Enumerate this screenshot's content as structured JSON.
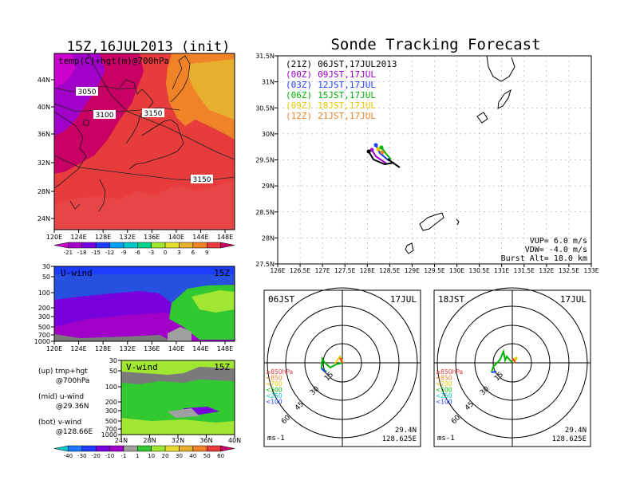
{
  "left": {
    "title": "15Z,16JUL2013 (init)",
    "top_map": {
      "label": "temp(C)+hgt(m)@700hPa",
      "contours": [
        "3050",
        "3100",
        "3150",
        "3150"
      ],
      "y_ticks": [
        "44N",
        "40N",
        "36N",
        "32N",
        "28N",
        "24N"
      ],
      "x_ticks": [
        "120E",
        "124E",
        "128E",
        "132E",
        "136E",
        "140E",
        "144E",
        "148E"
      ],
      "colorbar": {
        "labels": [
          "-21",
          "-18",
          "-15",
          "-12",
          "-9",
          "-6",
          "-3",
          "0",
          "3",
          "6",
          "9"
        ],
        "colors": [
          "#cc00cc",
          "#a000c8",
          "#7800dc",
          "#1e3cff",
          "#00a0ff",
          "#00c8c8",
          "#00d28c",
          "#a0e632",
          "#e6dc32",
          "#e6af2d",
          "#f08228",
          "#e63c3c",
          "#c80064"
        ]
      }
    },
    "u_panel": {
      "label": "U-wind",
      "time": "15Z",
      "y_ticks": [
        "30",
        "50",
        "100",
        "200",
        "300",
        "500",
        "700",
        "1000"
      ],
      "x_ticks": [
        "120E",
        "124E",
        "128E",
        "132E",
        "136E",
        "140E",
        "144E",
        "148E"
      ]
    },
    "v_panel": {
      "label": "V-wind",
      "time": "15Z",
      "y_ticks": [
        "30",
        "50",
        "100",
        "200",
        "300",
        "500",
        "700",
        "1000"
      ],
      "x_ticks": [
        "24N",
        "28N",
        "32N",
        "36N",
        "40N"
      ]
    },
    "legend_notes": [
      "(up) tmp+hgt",
      "@700hPa",
      "(mid) u-wind",
      "@29.36N",
      "(bot) v-wind",
      "@128.66E"
    ],
    "wind_colorbar": {
      "labels": [
        "-40",
        "-30",
        "-20",
        "-10",
        "-1",
        "1",
        "10",
        "20",
        "30",
        "40",
        "50",
        "60"
      ],
      "colors": [
        "#00c8c8",
        "#1e78ff",
        "#1e3cff",
        "#7800dc",
        "#a000c8",
        "#a0a0a0",
        "#32c832",
        "#a0e632",
        "#e6dc32",
        "#e6af2d",
        "#f08228",
        "#e63c3c",
        "#c80064"
      ]
    }
  },
  "right": {
    "title": "Sonde Tracking Forecast",
    "track_map": {
      "y_ticks": [
        "31.5N",
        "31N",
        "30.5N",
        "30N",
        "29.5N",
        "29N",
        "28.5N",
        "28N",
        "27.5N"
      ],
      "x_ticks": [
        "126E",
        "126.5E",
        "127E",
        "127.5E",
        "128E",
        "128.5E",
        "129E",
        "129.5E",
        "130E",
        "130.5E",
        "131E",
        "131.5E",
        "132E",
        "132.5E",
        "133E"
      ],
      "launches": [
        {
          "code": "(21Z)",
          "time": "06JST,17JUL2013",
          "color": "#000000"
        },
        {
          "code": "(00Z)",
          "time": "09JST,17JUL",
          "color": "#a000c8"
        },
        {
          "code": "(03Z)",
          "time": "12JST,17JUL",
          "color": "#1e3cff"
        },
        {
          "code": "(06Z)",
          "time": "15JST,17JUL",
          "color": "#00b400"
        },
        {
          "code": "(09Z)",
          "time": "18JST,17JUL",
          "color": "#e6c800"
        },
        {
          "code": "(12Z)",
          "time": "21JST,17JUL",
          "color": "#f08228"
        }
      ],
      "params": [
        "VUP=  6.0  m/s",
        "VDW= -4.0  m/s",
        "Burst Alt= 18.0  km"
      ]
    },
    "hodographs": [
      {
        "time": "06JST",
        "date": "17JUL",
        "rings": [
          "15",
          "30",
          "45",
          "60"
        ],
        "unit": "ms-1",
        "lat": "29.4N",
        "lon": "128.625E"
      },
      {
        "time": "18JST",
        "date": "17JUL",
        "rings": [
          "15",
          "30",
          "45",
          "60"
        ],
        "unit": "ms-1",
        "lat": "29.4N",
        "lon": "128.625E"
      }
    ],
    "hodo_legend": [
      {
        "label": "≥850hPa",
        "color": "#e63c3c"
      },
      {
        "label": "<850",
        "color": "#f08228"
      },
      {
        "label": "<700",
        "color": "#e6c800"
      },
      {
        "label": "<500",
        "color": "#00b400"
      },
      {
        "label": "<250",
        "color": "#00c8c8"
      },
      {
        "label": "<100",
        "color": "#1e3cff"
      }
    ]
  }
}
